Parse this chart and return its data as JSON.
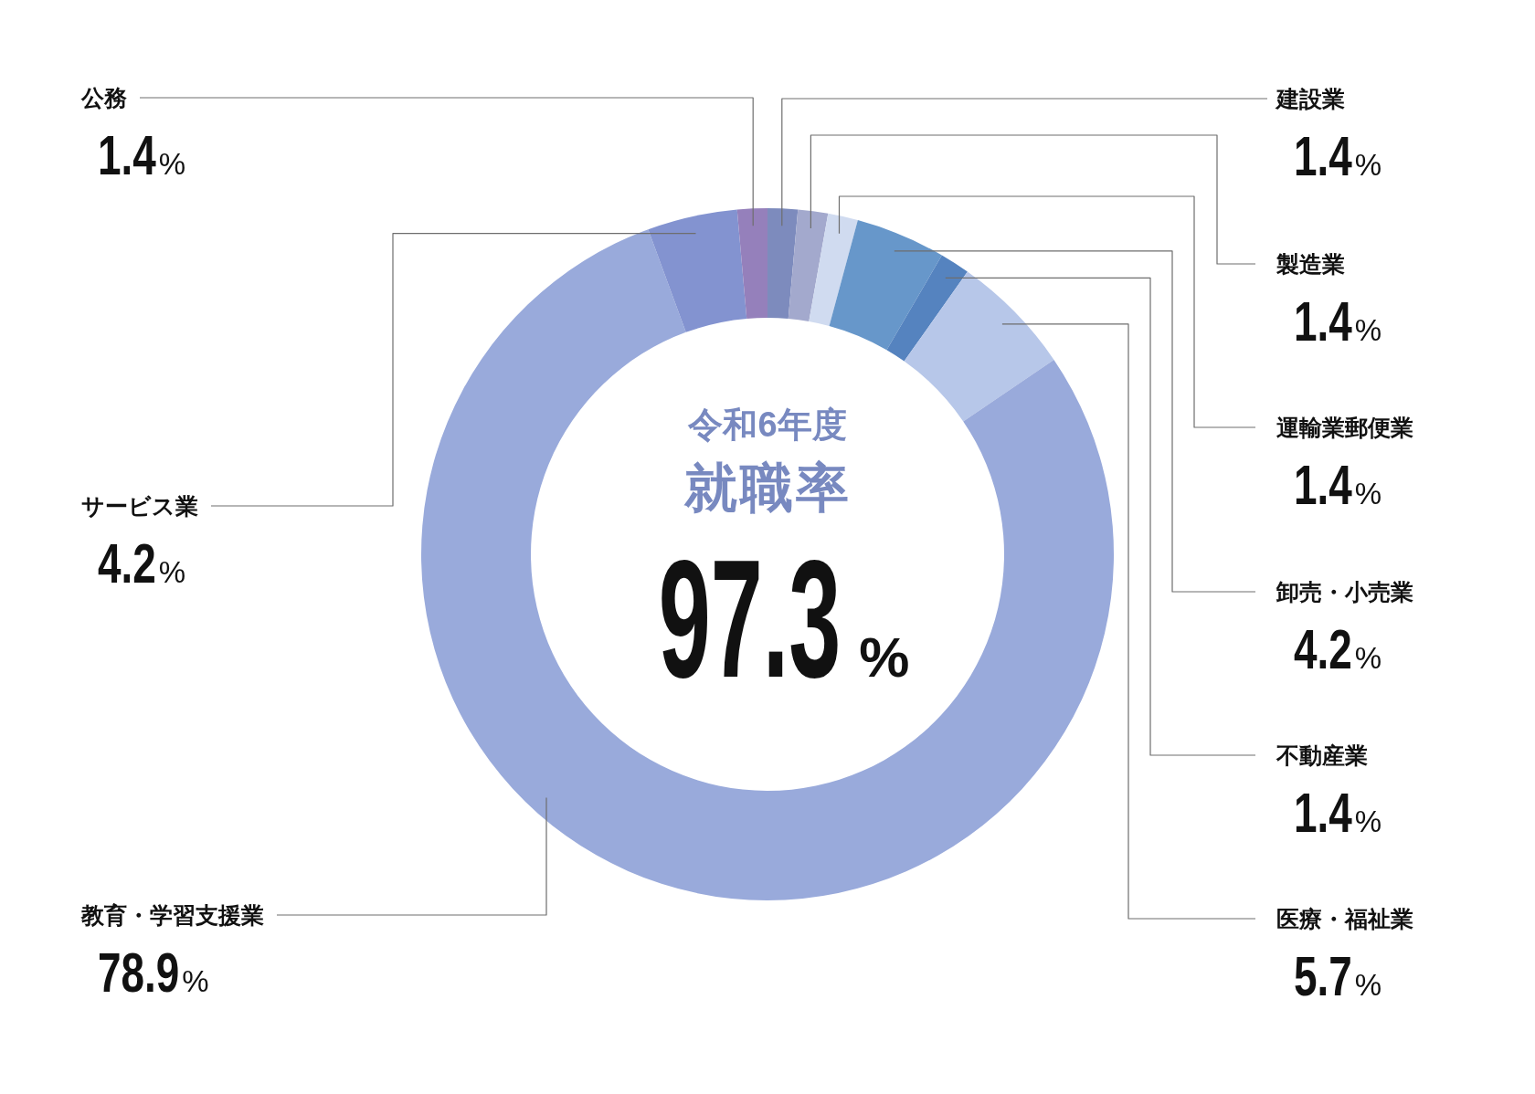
{
  "chart_data": {
    "type": "donut",
    "title": "令和6年度",
    "subtitle": "就職率",
    "annotations": [
      "97.3%"
    ],
    "categories": [
      "建設業",
      "製造業",
      "運輸業郵便業",
      "卸売・小売業",
      "不動産業",
      "医療・福祉業",
      "教育・学習支援業",
      "サービス業",
      "公務"
    ],
    "values": [
      1.4,
      1.4,
      1.4,
      4.2,
      1.4,
      5.7,
      78.9,
      4.2,
      1.4
    ],
    "colors": [
      "#7d8bbd",
      "#a3a9cd",
      "#d0dbf0",
      "#6797ca",
      "#5583bf",
      "#b7c7e9",
      "#99aadb",
      "#8393d0",
      "#9580bb"
    ],
    "value_labels": [
      "1.4%",
      "1.4%",
      "1.4%",
      "4.2%",
      "1.4%",
      "5.7%",
      "78.9%",
      "4.2%",
      "1.4%"
    ]
  }
}
